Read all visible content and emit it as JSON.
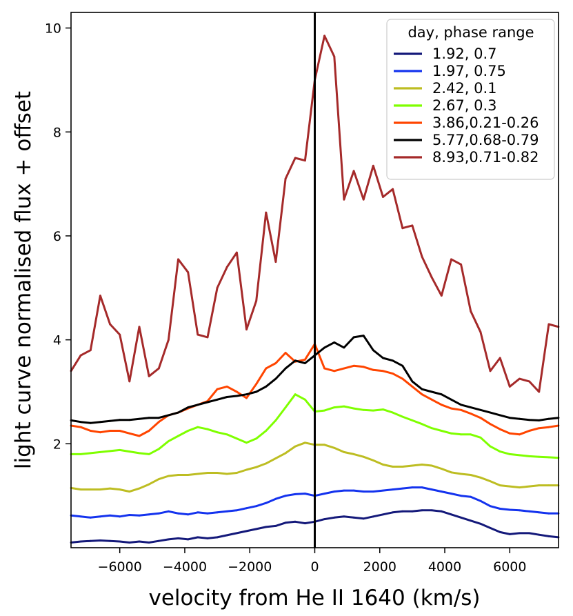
{
  "chart_data": {
    "type": "line",
    "xlabel": "velocity from He II 1640 (km/s)",
    "ylabel": "light curve normalised flux + offset",
    "xlim": [
      -7500,
      7500
    ],
    "ylim": [
      0,
      10.3
    ],
    "xticks": [
      -6000,
      -4000,
      -2000,
      0,
      2000,
      4000,
      6000
    ],
    "xtick_labels": [
      "−6000",
      "−4000",
      "−2000",
      "0",
      "2000",
      "4000",
      "6000"
    ],
    "yticks": [
      2,
      4,
      6,
      8,
      10
    ],
    "ytick_labels": [
      "2",
      "4",
      "6",
      "8",
      "10"
    ],
    "vline_x": 0,
    "legend_title": "day, phase range",
    "legend_position": "top-right",
    "x": [
      -7500,
      -7200,
      -6900,
      -6600,
      -6300,
      -6000,
      -5700,
      -5400,
      -5100,
      -4800,
      -4500,
      -4200,
      -3900,
      -3600,
      -3300,
      -3000,
      -2700,
      -2400,
      -2100,
      -1800,
      -1500,
      -1200,
      -900,
      -600,
      -300,
      0,
      300,
      600,
      900,
      1200,
      1500,
      1800,
      2100,
      2400,
      2700,
      3000,
      3300,
      3600,
      3900,
      4200,
      4500,
      4800,
      5100,
      5400,
      5700,
      6000,
      6300,
      6600,
      6900,
      7200,
      7500
    ],
    "series": [
      {
        "name": "1.92, 0.7",
        "color": "#14197a",
        "values": [
          0.1,
          0.12,
          0.13,
          0.14,
          0.13,
          0.12,
          0.1,
          0.12,
          0.1,
          0.13,
          0.16,
          0.18,
          0.16,
          0.2,
          0.18,
          0.2,
          0.24,
          0.28,
          0.32,
          0.36,
          0.4,
          0.42,
          0.48,
          0.5,
          0.47,
          0.5,
          0.55,
          0.58,
          0.6,
          0.58,
          0.56,
          0.6,
          0.64,
          0.68,
          0.7,
          0.7,
          0.72,
          0.72,
          0.7,
          0.64,
          0.58,
          0.52,
          0.46,
          0.38,
          0.3,
          0.26,
          0.28,
          0.28,
          0.25,
          0.22,
          0.2
        ]
      },
      {
        "name": "1.97, 0.75",
        "color": "#1433ee",
        "values": [
          0.62,
          0.6,
          0.58,
          0.6,
          0.62,
          0.6,
          0.63,
          0.62,
          0.64,
          0.66,
          0.7,
          0.66,
          0.64,
          0.68,
          0.66,
          0.68,
          0.7,
          0.72,
          0.76,
          0.8,
          0.86,
          0.94,
          1.0,
          1.03,
          1.04,
          1.0,
          1.04,
          1.08,
          1.1,
          1.1,
          1.08,
          1.08,
          1.1,
          1.12,
          1.14,
          1.16,
          1.16,
          1.12,
          1.08,
          1.04,
          1.0,
          0.98,
          0.9,
          0.8,
          0.75,
          0.73,
          0.72,
          0.7,
          0.68,
          0.66,
          0.66
        ]
      },
      {
        "name": "2.42, 0.1",
        "color": "#bdbd22",
        "values": [
          1.15,
          1.12,
          1.12,
          1.12,
          1.14,
          1.12,
          1.08,
          1.14,
          1.22,
          1.32,
          1.38,
          1.4,
          1.4,
          1.42,
          1.44,
          1.44,
          1.42,
          1.44,
          1.5,
          1.55,
          1.62,
          1.72,
          1.82,
          1.95,
          2.02,
          1.98,
          1.98,
          1.92,
          1.84,
          1.8,
          1.75,
          1.68,
          1.6,
          1.56,
          1.56,
          1.58,
          1.6,
          1.58,
          1.52,
          1.45,
          1.42,
          1.4,
          1.35,
          1.28,
          1.2,
          1.18,
          1.16,
          1.18,
          1.2,
          1.2,
          1.2
        ]
      },
      {
        "name": "2.67, 0.3",
        "color": "#7fff00",
        "values": [
          1.8,
          1.8,
          1.82,
          1.84,
          1.86,
          1.88,
          1.85,
          1.82,
          1.8,
          1.9,
          2.05,
          2.15,
          2.25,
          2.32,
          2.28,
          2.22,
          2.18,
          2.1,
          2.02,
          2.1,
          2.25,
          2.45,
          2.7,
          2.95,
          2.85,
          2.62,
          2.64,
          2.7,
          2.72,
          2.68,
          2.65,
          2.64,
          2.66,
          2.6,
          2.52,
          2.45,
          2.38,
          2.3,
          2.25,
          2.2,
          2.18,
          2.18,
          2.12,
          1.95,
          1.85,
          1.8,
          1.78,
          1.76,
          1.75,
          1.74,
          1.73
        ]
      },
      {
        "name": "3.86,0.21-0.26",
        "color": "#ff4500",
        "values": [
          2.35,
          2.32,
          2.25,
          2.22,
          2.25,
          2.25,
          2.2,
          2.15,
          2.25,
          2.42,
          2.55,
          2.6,
          2.68,
          2.75,
          2.82,
          3.05,
          3.1,
          3.0,
          2.88,
          3.15,
          3.45,
          3.55,
          3.75,
          3.58,
          3.62,
          3.92,
          3.45,
          3.4,
          3.45,
          3.5,
          3.48,
          3.42,
          3.4,
          3.35,
          3.25,
          3.1,
          2.95,
          2.85,
          2.75,
          2.68,
          2.65,
          2.58,
          2.5,
          2.38,
          2.28,
          2.2,
          2.18,
          2.25,
          2.3,
          2.32,
          2.35
        ]
      },
      {
        "name": "5.77,0.68-0.79",
        "color": "#000000",
        "values": [
          2.45,
          2.42,
          2.4,
          2.42,
          2.44,
          2.46,
          2.46,
          2.48,
          2.5,
          2.5,
          2.55,
          2.6,
          2.7,
          2.75,
          2.8,
          2.85,
          2.9,
          2.92,
          2.95,
          3.0,
          3.1,
          3.25,
          3.45,
          3.6,
          3.55,
          3.7,
          3.85,
          3.95,
          3.85,
          4.05,
          4.08,
          3.8,
          3.65,
          3.6,
          3.5,
          3.2,
          3.05,
          3.0,
          2.95,
          2.85,
          2.75,
          2.7,
          2.65,
          2.6,
          2.55,
          2.5,
          2.48,
          2.46,
          2.45,
          2.48,
          2.5
        ]
      },
      {
        "name": "8.93,0.71-0.82",
        "color": "#a52a2a",
        "values": [
          3.4,
          3.7,
          3.8,
          4.85,
          4.3,
          4.1,
          3.2,
          4.25,
          3.3,
          3.45,
          4.0,
          5.55,
          5.3,
          4.1,
          4.05,
          5.0,
          5.4,
          5.68,
          4.2,
          4.75,
          6.45,
          5.5,
          7.1,
          7.5,
          7.45,
          9.0,
          9.85,
          9.45,
          6.7,
          7.25,
          6.7,
          7.35,
          6.75,
          6.9,
          6.15,
          6.2,
          5.6,
          5.2,
          4.85,
          5.55,
          5.45,
          4.55,
          4.15,
          3.4,
          3.65,
          3.1,
          3.25,
          3.2,
          3.0,
          4.3,
          4.25
        ]
      }
    ]
  }
}
